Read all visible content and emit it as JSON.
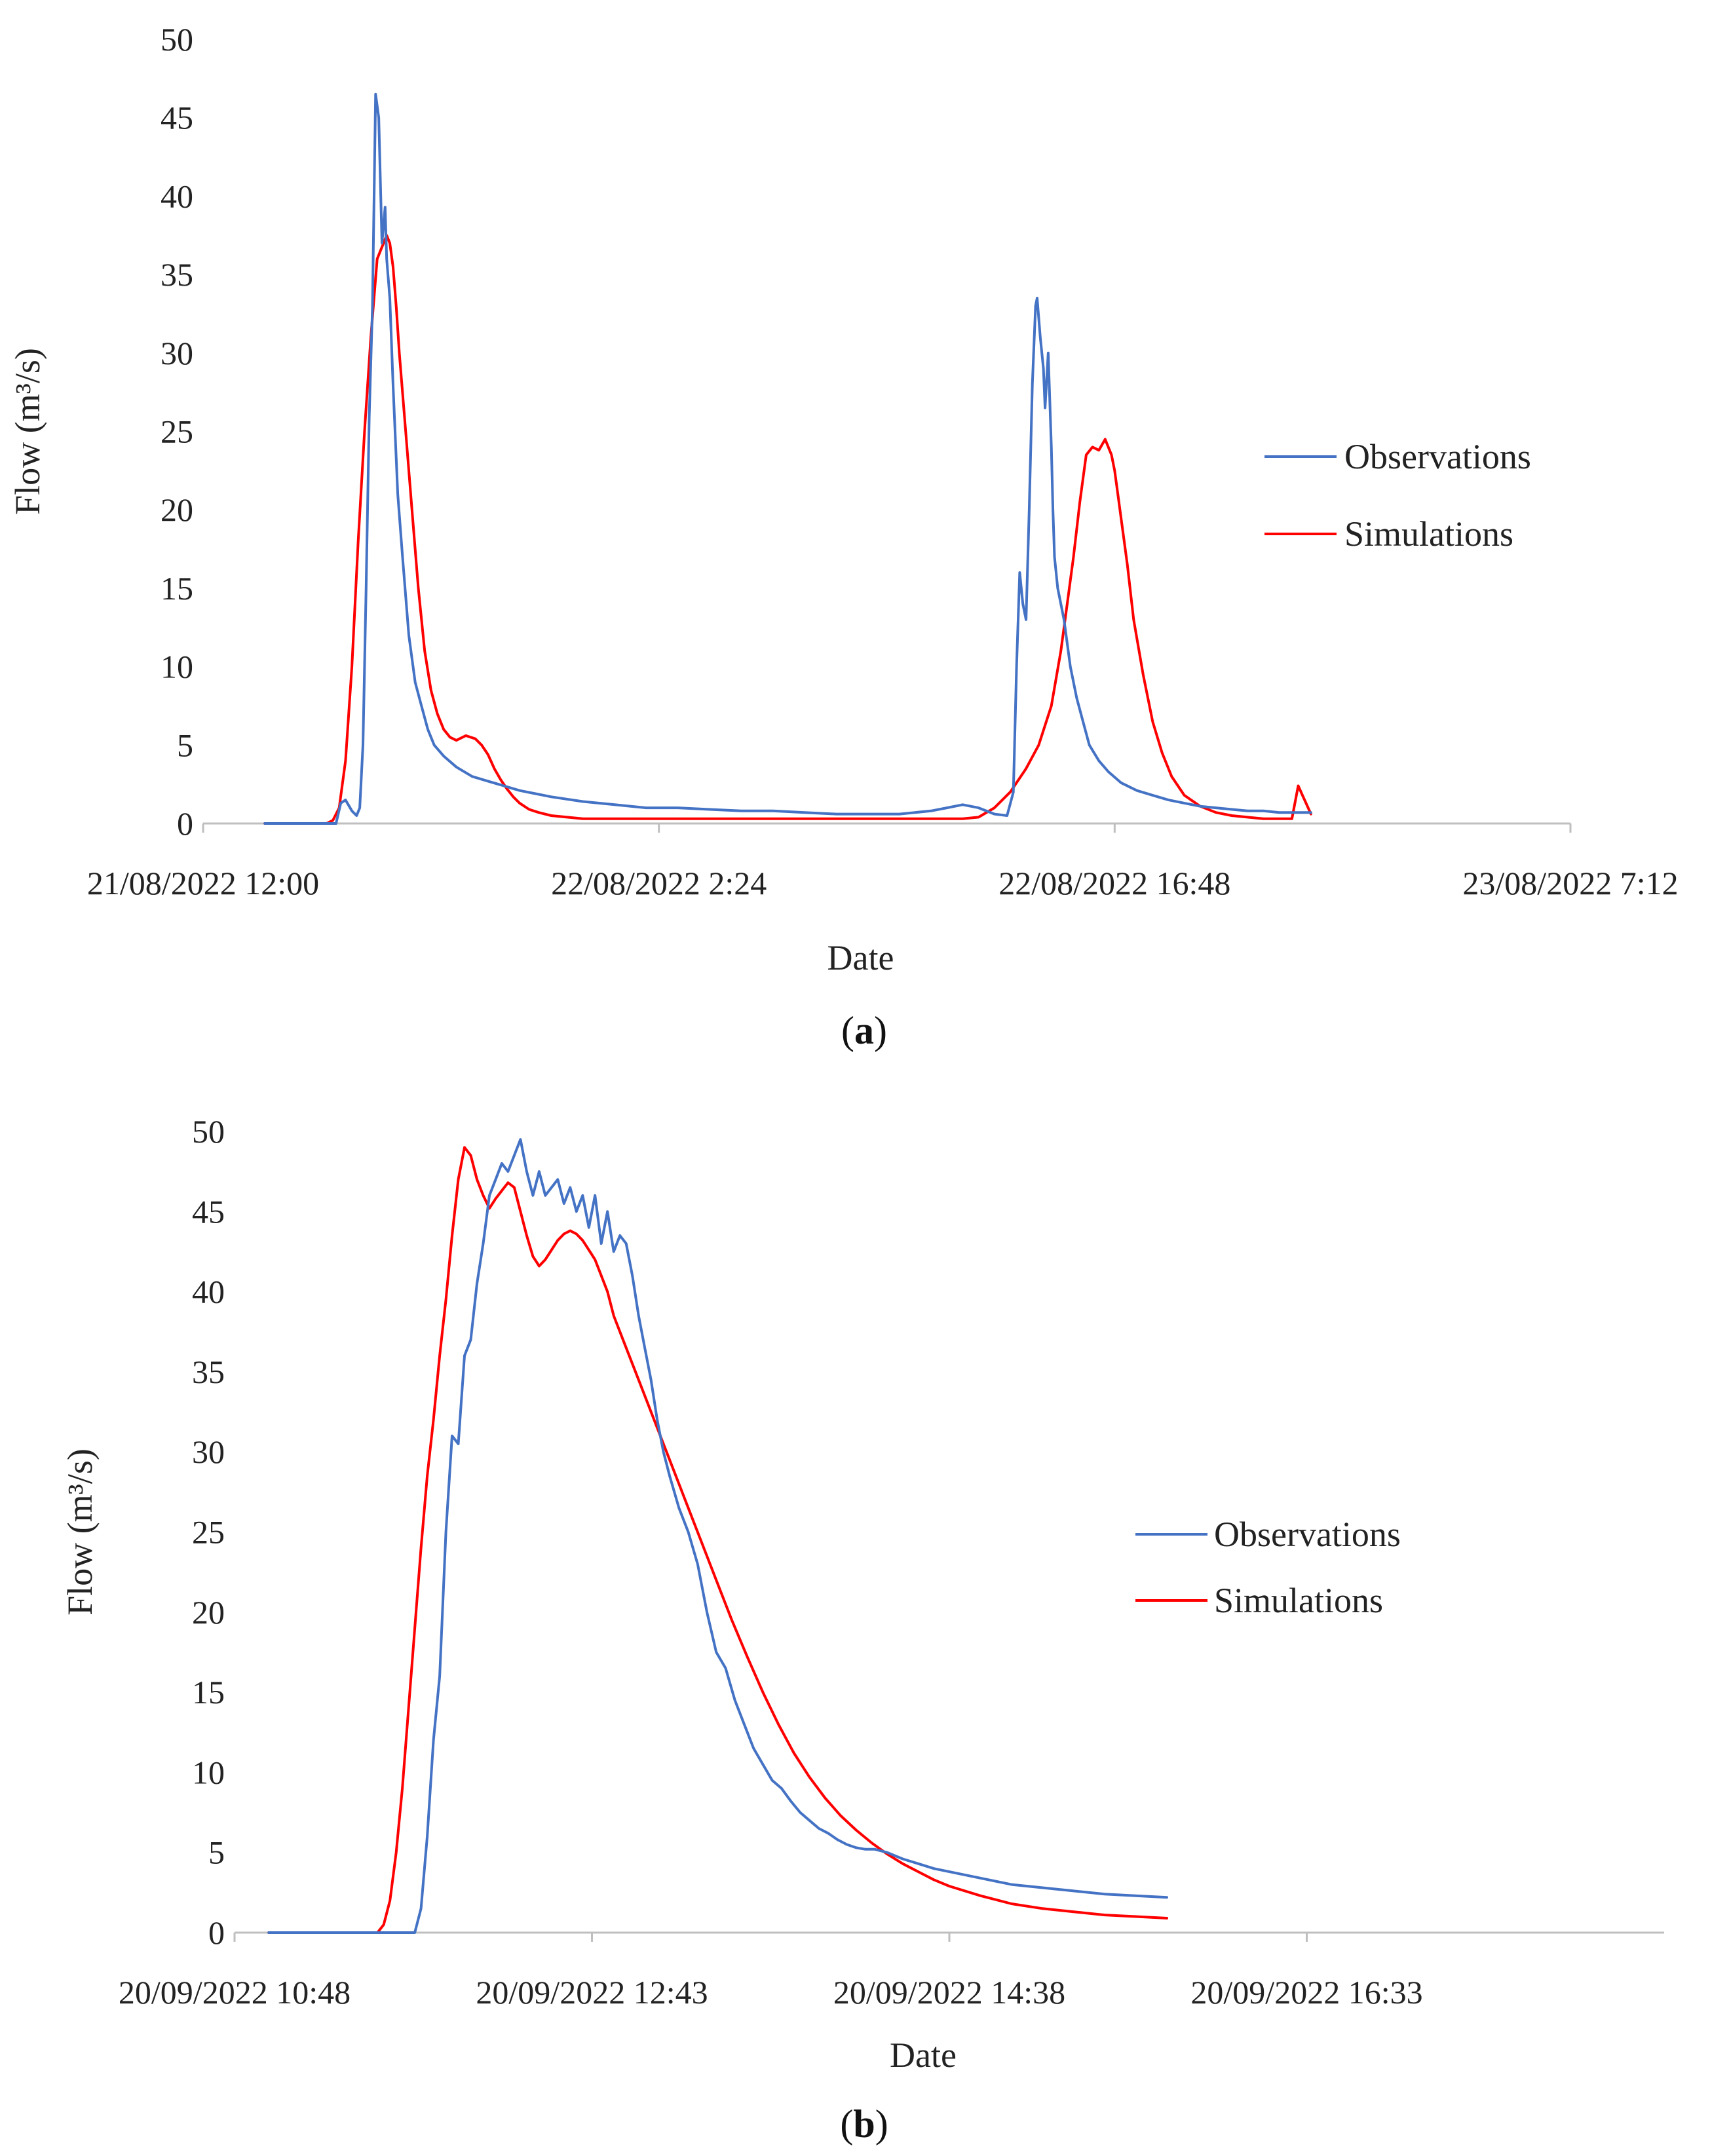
{
  "colors": {
    "observations": "#4472c4",
    "simulations": "#ff0000",
    "axis": "#bfbfbf",
    "text": "#222222"
  },
  "chart_data": [
    {
      "type": "line",
      "panel_label": {
        "open": "(",
        "letter": "a",
        "close": ")"
      },
      "xlabel": "Date",
      "ylabel": "Flow (m³/s)",
      "ylim": [
        0,
        50
      ],
      "yticks": [
        "0",
        "5",
        "10",
        "15",
        "20",
        "25",
        "30",
        "35",
        "40",
        "45",
        "50"
      ],
      "xlim_hours": [
        0,
        43.2
      ],
      "xticks": [
        {
          "hours": 0,
          "label": "21/08/2022 12:00"
        },
        {
          "hours": 14.4,
          "label": "22/08/2022 2:24"
        },
        {
          "hours": 28.8,
          "label": "22/08/2022 16:48"
        },
        {
          "hours": 43.2,
          "label": "23/08/2022 7:12"
        }
      ],
      "legend": {
        "position": "right",
        "entries": [
          "Observations",
          "Simulations"
        ]
      },
      "series": [
        {
          "name": "Observations",
          "x": [
            1.95,
            4.2,
            4.35,
            4.5,
            4.7,
            4.85,
            4.95,
            5.05,
            5.15,
            5.25,
            5.35,
            5.45,
            5.55,
            5.65,
            5.75,
            5.8,
            5.9,
            6.0,
            6.15,
            6.3,
            6.5,
            6.7,
            6.9,
            7.1,
            7.3,
            7.6,
            8.0,
            8.5,
            9.0,
            9.5,
            10.0,
            10.5,
            11.0,
            12.0,
            13.0,
            14.0,
            15.0,
            16.0,
            17.0,
            18.0,
            19.0,
            20.0,
            21.0,
            22.0,
            23.0,
            23.5,
            24.0,
            24.5,
            25.0,
            25.4,
            25.6,
            25.7,
            25.8,
            25.9,
            26.0,
            26.1,
            26.2,
            26.3,
            26.35,
            26.45,
            26.55,
            26.6,
            26.7,
            26.8,
            26.85,
            26.9,
            27.0,
            27.1,
            27.2,
            27.4,
            27.6,
            27.8,
            28.0,
            28.3,
            28.6,
            29.0,
            29.5,
            30.0,
            30.5,
            31.0,
            31.5,
            32.0,
            32.5,
            33.0,
            33.5,
            34.0,
            34.5,
            35.0
          ],
          "values": [
            0,
            0,
            1.3,
            1.5,
            0.8,
            0.5,
            1.0,
            5.0,
            15.0,
            26.0,
            33.0,
            46.5,
            45.0,
            37.0,
            39.3,
            36.0,
            33.5,
            28.0,
            21.0,
            17.0,
            12.0,
            9.0,
            7.5,
            6.0,
            5.0,
            4.3,
            3.6,
            3.0,
            2.7,
            2.4,
            2.1,
            1.9,
            1.7,
            1.4,
            1.2,
            1.0,
            1.0,
            0.9,
            0.8,
            0.8,
            0.7,
            0.6,
            0.6,
            0.6,
            0.8,
            1.0,
            1.2,
            1.0,
            0.6,
            0.5,
            2.0,
            10.0,
            16.0,
            14.0,
            13.0,
            20.0,
            28.0,
            33.0,
            33.5,
            31.0,
            29.0,
            26.5,
            30.0,
            24.0,
            20.0,
            17.0,
            15.0,
            14.0,
            13.0,
            10.0,
            8.0,
            6.5,
            5.0,
            4.0,
            3.3,
            2.6,
            2.1,
            1.8,
            1.5,
            1.3,
            1.1,
            1.0,
            0.9,
            0.8,
            0.8,
            0.7,
            0.7,
            0.7
          ]
        },
        {
          "name": "Simulations",
          "x": [
            1.95,
            3.9,
            4.1,
            4.3,
            4.5,
            4.7,
            4.9,
            5.1,
            5.3,
            5.5,
            5.6,
            5.7,
            5.8,
            5.9,
            6.0,
            6.1,
            6.2,
            6.4,
            6.6,
            6.8,
            7.0,
            7.2,
            7.4,
            7.6,
            7.8,
            8.0,
            8.3,
            8.6,
            8.8,
            9.0,
            9.2,
            9.4,
            9.6,
            9.8,
            10.0,
            10.3,
            10.6,
            11.0,
            11.5,
            12.0,
            12.5,
            13.0,
            14.0,
            16.0,
            18.0,
            20.0,
            22.0,
            24.0,
            24.5,
            25.0,
            25.5,
            26.0,
            26.4,
            26.8,
            27.1,
            27.3,
            27.5,
            27.7,
            27.9,
            28.1,
            28.3,
            28.5,
            28.7,
            28.8,
            28.9,
            29.0,
            29.2,
            29.4,
            29.7,
            30.0,
            30.3,
            30.6,
            31.0,
            31.5,
            32.0,
            32.5,
            33.0,
            33.5,
            34.0,
            34.4,
            34.6,
            34.8,
            35.0
          ],
          "values": [
            0,
            0,
            0.2,
            1.0,
            4.0,
            10.0,
            18.0,
            25.0,
            31.0,
            36.0,
            36.5,
            37.0,
            37.5,
            37.0,
            35.5,
            33.0,
            30.0,
            25.0,
            20.0,
            15.0,
            11.0,
            8.5,
            7.0,
            6.0,
            5.5,
            5.3,
            5.6,
            5.4,
            5.0,
            4.4,
            3.5,
            2.8,
            2.2,
            1.7,
            1.3,
            0.9,
            0.7,
            0.5,
            0.4,
            0.3,
            0.3,
            0.3,
            0.3,
            0.3,
            0.3,
            0.3,
            0.3,
            0.3,
            0.4,
            1.0,
            2.0,
            3.5,
            5.0,
            7.5,
            11.0,
            14.0,
            17.0,
            20.5,
            23.5,
            24.0,
            23.8,
            24.5,
            23.5,
            22.5,
            21.0,
            19.5,
            16.5,
            13.0,
            9.5,
            6.5,
            4.5,
            3.0,
            1.8,
            1.1,
            0.7,
            0.5,
            0.4,
            0.3,
            0.3,
            0.3,
            2.4,
            1.5,
            0.6
          ]
        }
      ]
    },
    {
      "type": "line",
      "panel_label": {
        "open": "(",
        "letter": "b",
        "close": ")"
      },
      "xlabel": "Date",
      "ylabel": "Flow (m³/s)",
      "ylim": [
        0,
        50
      ],
      "yticks": [
        "0",
        "5",
        "10",
        "15",
        "20",
        "25",
        "30",
        "35",
        "40",
        "45",
        "50"
      ],
      "xlim_minutes": [
        0,
        460
      ],
      "xticks": [
        {
          "minutes": 0,
          "label": "20/09/2022 10:48"
        },
        {
          "minutes": 115,
          "label": "20/09/2022 12:43"
        },
        {
          "minutes": 230,
          "label": "20/09/2022 14:38"
        },
        {
          "minutes": 345,
          "label": "20/09/2022 16:33"
        }
      ],
      "legend": {
        "position": "right",
        "entries": [
          "Observations",
          "Simulations"
        ]
      },
      "series": [
        {
          "name": "Observations",
          "x": [
            11,
            58,
            60,
            62,
            64,
            66,
            68,
            70,
            72,
            74,
            76,
            78,
            80,
            82,
            84,
            86,
            88,
            90,
            92,
            94,
            96,
            98,
            100,
            102,
            104,
            106,
            108,
            110,
            112,
            114,
            116,
            118,
            120,
            122,
            124,
            126,
            128,
            130,
            132,
            134,
            136,
            138,
            140,
            143,
            146,
            149,
            152,
            155,
            158,
            161,
            164,
            167,
            170,
            173,
            176,
            179,
            182,
            185,
            188,
            191,
            194,
            197,
            200,
            203,
            206,
            210,
            215,
            220,
            225,
            230,
            235,
            240,
            250,
            260,
            270,
            280,
            290,
            300
          ],
          "values": [
            0,
            0,
            1.5,
            6.0,
            12.0,
            16.0,
            25.0,
            31.0,
            30.5,
            36.0,
            37.0,
            40.5,
            43.0,
            46.0,
            47.0,
            48.0,
            47.5,
            48.5,
            49.5,
            47.5,
            46.0,
            47.5,
            46.0,
            46.5,
            47.0,
            45.5,
            46.5,
            45.0,
            46.0,
            44.0,
            46.0,
            43.0,
            45.0,
            42.5,
            43.5,
            43.0,
            41.0,
            38.5,
            36.5,
            34.5,
            32.0,
            30.0,
            28.5,
            26.5,
            25.0,
            23.0,
            20.0,
            17.5,
            16.5,
            14.5,
            13.0,
            11.5,
            10.5,
            9.5,
            9.0,
            8.2,
            7.5,
            7.0,
            6.5,
            6.2,
            5.8,
            5.5,
            5.3,
            5.2,
            5.2,
            5.0,
            4.6,
            4.3,
            4.0,
            3.8,
            3.6,
            3.4,
            3.0,
            2.8,
            2.6,
            2.4,
            2.3,
            2.2
          ]
        },
        {
          "name": "Simulations",
          "x": [
            11,
            46,
            48,
            50,
            52,
            54,
            56,
            58,
            60,
            62,
            64,
            66,
            68,
            70,
            72,
            74,
            76,
            78,
            80,
            82,
            84,
            86,
            88,
            90,
            92,
            94,
            96,
            98,
            100,
            102,
            104,
            106,
            108,
            110,
            112,
            114,
            116,
            118,
            120,
            122,
            125,
            130,
            135,
            140,
            145,
            150,
            155,
            160,
            165,
            170,
            175,
            180,
            185,
            190,
            195,
            200,
            205,
            210,
            215,
            220,
            225,
            230,
            240,
            250,
            260,
            270,
            280,
            290,
            300
          ],
          "values": [
            0,
            0,
            0.5,
            2.0,
            5.0,
            9.0,
            14.0,
            19.0,
            24.0,
            28.5,
            32.0,
            36.0,
            39.5,
            43.5,
            47.0,
            49.0,
            48.5,
            47.0,
            46.0,
            45.2,
            45.8,
            46.3,
            46.8,
            46.5,
            45.0,
            43.5,
            42.2,
            41.6,
            42.0,
            42.6,
            43.2,
            43.6,
            43.8,
            43.6,
            43.2,
            42.6,
            42.0,
            41.0,
            40.0,
            38.5,
            37.0,
            34.5,
            32.0,
            29.5,
            27.0,
            24.5,
            22.0,
            19.5,
            17.2,
            15.0,
            13.0,
            11.2,
            9.7,
            8.4,
            7.3,
            6.4,
            5.6,
            4.9,
            4.3,
            3.8,
            3.3,
            2.9,
            2.3,
            1.8,
            1.5,
            1.3,
            1.1,
            1.0,
            0.9
          ]
        }
      ]
    }
  ]
}
